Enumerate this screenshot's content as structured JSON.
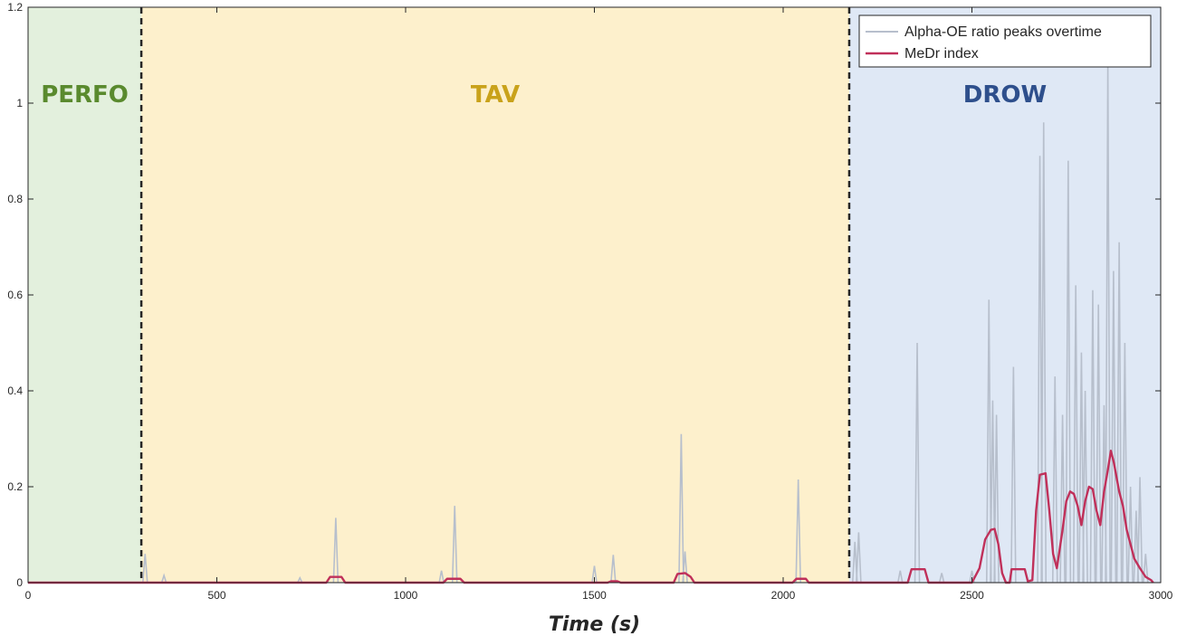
{
  "chart_data": {
    "type": "line",
    "xlabel": "Time (s)",
    "ylabel": "",
    "xlim": [
      0,
      3000
    ],
    "ylim": [
      0,
      1.2
    ],
    "xticks": [
      0,
      500,
      1000,
      1500,
      2000,
      2500,
      3000
    ],
    "xtick_labels": [
      "0",
      "500",
      "1000",
      "1500",
      "2000",
      "2500",
      "3000"
    ],
    "yticks": [
      0,
      0.2,
      0.4,
      0.6,
      0.8,
      1.0,
      1.2
    ],
    "ytick_labels": [
      "0",
      "0.2",
      "0.4",
      "0.6",
      "0.8",
      "1",
      "1.2"
    ],
    "grid": false,
    "legend_position": "top-right",
    "regions": [
      {
        "label": "PERFO",
        "x_start": 0,
        "x_end": 300,
        "fill": "#e3f0dd",
        "label_color": "#5a8a2e"
      },
      {
        "label": "TAV",
        "x_start": 300,
        "x_end": 2175,
        "fill": "#fdf0cc",
        "label_color": "#c9a21a"
      },
      {
        "label": "DROW",
        "x_start": 2175,
        "x_end": 3000,
        "fill": "#dfe8f5",
        "label_color": "#2e4f8c"
      }
    ],
    "boundaries": [
      300,
      2175
    ],
    "series": [
      {
        "name": "Alpha-OE ratio peaks overtime",
        "color": "#b7bfcc",
        "kind": "spikes",
        "points": [
          [
            310,
            0.06
          ],
          [
            360,
            0.015
          ],
          [
            720,
            0.01
          ],
          [
            815,
            0.135
          ],
          [
            1095,
            0.025
          ],
          [
            1130,
            0.16
          ],
          [
            1500,
            0.035
          ],
          [
            1550,
            0.058
          ],
          [
            1730,
            0.31
          ],
          [
            1740,
            0.065
          ],
          [
            2040,
            0.215
          ],
          [
            2190,
            0.085
          ],
          [
            2200,
            0.105
          ],
          [
            2310,
            0.025
          ],
          [
            2355,
            0.5
          ],
          [
            2420,
            0.02
          ],
          [
            2500,
            0.025
          ],
          [
            2545,
            0.59
          ],
          [
            2555,
            0.38
          ],
          [
            2565,
            0.35
          ],
          [
            2610,
            0.45
          ],
          [
            2680,
            0.89
          ],
          [
            2690,
            0.96
          ],
          [
            2720,
            0.43
          ],
          [
            2740,
            0.35
          ],
          [
            2755,
            0.88
          ],
          [
            2775,
            0.62
          ],
          [
            2790,
            0.48
          ],
          [
            2800,
            0.4
          ],
          [
            2820,
            0.61
          ],
          [
            2835,
            0.58
          ],
          [
            2850,
            0.37
          ],
          [
            2860,
            1.08
          ],
          [
            2875,
            0.65
          ],
          [
            2890,
            0.71
          ],
          [
            2905,
            0.5
          ],
          [
            2920,
            0.2
          ],
          [
            2935,
            0.15
          ],
          [
            2945,
            0.22
          ],
          [
            2960,
            0.06
          ]
        ]
      },
      {
        "name": "MeDr index",
        "color": "#c0305a",
        "kind": "line",
        "points": [
          [
            0,
            0
          ],
          [
            790,
            0
          ],
          [
            800,
            0.012
          ],
          [
            830,
            0.012
          ],
          [
            840,
            0
          ],
          [
            1100,
            0
          ],
          [
            1110,
            0.008
          ],
          [
            1145,
            0.008
          ],
          [
            1155,
            0
          ],
          [
            1535,
            0
          ],
          [
            1545,
            0.003
          ],
          [
            1560,
            0.003
          ],
          [
            1570,
            0
          ],
          [
            1710,
            0
          ],
          [
            1720,
            0.018
          ],
          [
            1740,
            0.02
          ],
          [
            1755,
            0.012
          ],
          [
            1765,
            0
          ],
          [
            2025,
            0
          ],
          [
            2035,
            0.008
          ],
          [
            2060,
            0.008
          ],
          [
            2068,
            0
          ],
          [
            2330,
            0
          ],
          [
            2340,
            0.028
          ],
          [
            2375,
            0.028
          ],
          [
            2385,
            0
          ],
          [
            2500,
            0
          ],
          [
            2520,
            0.03
          ],
          [
            2535,
            0.09
          ],
          [
            2550,
            0.11
          ],
          [
            2560,
            0.112
          ],
          [
            2570,
            0.08
          ],
          [
            2580,
            0.02
          ],
          [
            2590,
            0
          ],
          [
            2600,
            0
          ],
          [
            2605,
            0.028
          ],
          [
            2640,
            0.028
          ],
          [
            2648,
            0.003
          ],
          [
            2660,
            0.005
          ],
          [
            2670,
            0.15
          ],
          [
            2680,
            0.225
          ],
          [
            2695,
            0.228
          ],
          [
            2705,
            0.15
          ],
          [
            2715,
            0.06
          ],
          [
            2725,
            0.03
          ],
          [
            2740,
            0.11
          ],
          [
            2750,
            0.17
          ],
          [
            2760,
            0.19
          ],
          [
            2770,
            0.185
          ],
          [
            2780,
            0.16
          ],
          [
            2790,
            0.12
          ],
          [
            2800,
            0.17
          ],
          [
            2810,
            0.2
          ],
          [
            2820,
            0.195
          ],
          [
            2830,
            0.15
          ],
          [
            2840,
            0.12
          ],
          [
            2850,
            0.19
          ],
          [
            2860,
            0.235
          ],
          [
            2868,
            0.275
          ],
          [
            2876,
            0.25
          ],
          [
            2890,
            0.19
          ],
          [
            2900,
            0.16
          ],
          [
            2910,
            0.11
          ],
          [
            2920,
            0.08
          ],
          [
            2930,
            0.05
          ],
          [
            2945,
            0.03
          ],
          [
            2960,
            0.012
          ],
          [
            2975,
            0.005
          ],
          [
            2980,
            0
          ]
        ]
      }
    ]
  }
}
